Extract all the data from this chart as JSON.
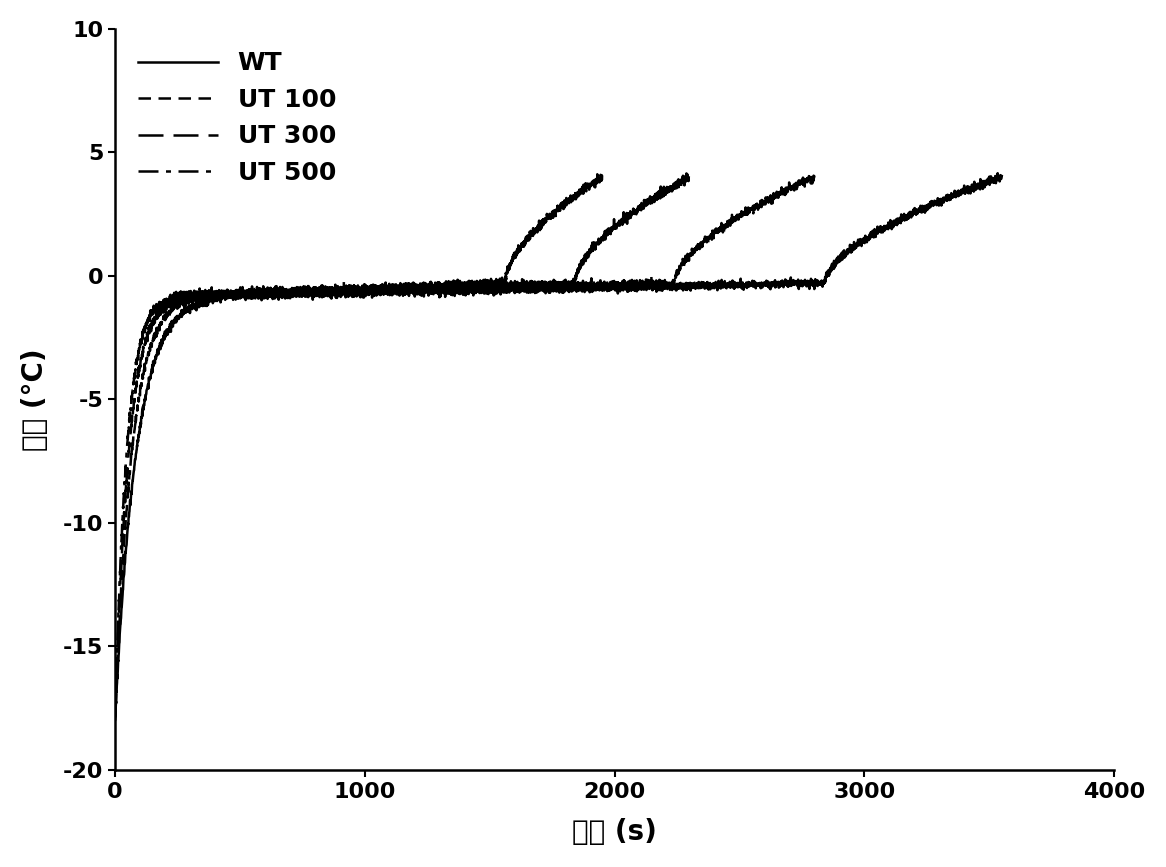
{
  "title": "",
  "xlabel": "时间 (s)",
  "ylabel": "温度 (°C)",
  "xlim": [
    0,
    4000
  ],
  "ylim": [
    -20,
    10
  ],
  "xticks": [
    0,
    1000,
    2000,
    3000,
    4000
  ],
  "yticks": [
    -20,
    -15,
    -10,
    -5,
    0,
    5,
    10
  ],
  "line_color": "#000000",
  "background_color": "#ffffff",
  "legend_labels": [
    "WT",
    "UT 100",
    "UT 300",
    "UT 500"
  ],
  "font_size": 18,
  "label_fontsize": 20,
  "tick_fontsize": 16,
  "curves": {
    "WT": {
      "t_end": 3550,
      "seed": 1
    },
    "UT100": {
      "t_end": 2800,
      "seed": 2
    },
    "UT300": {
      "t_end": 2300,
      "seed": 3
    },
    "UT500": {
      "t_end": 1950,
      "seed": 4
    }
  }
}
